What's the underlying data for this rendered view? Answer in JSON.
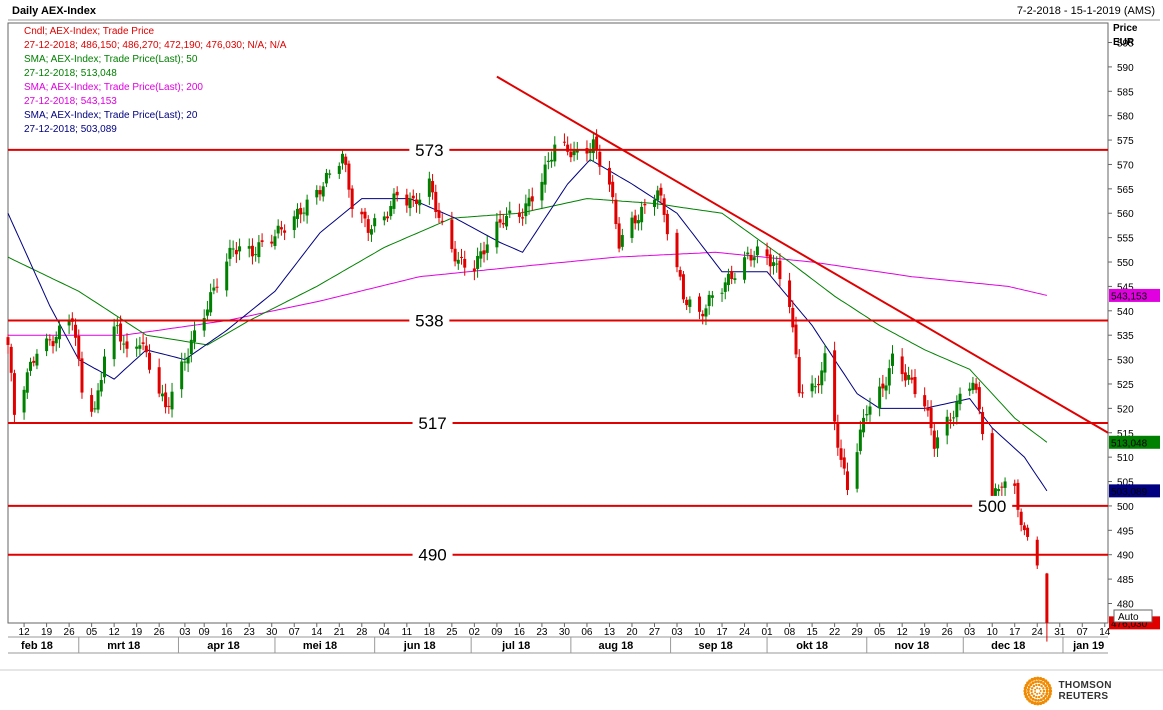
{
  "header": {
    "title": "Daily AEX-Index",
    "date_range": "7-2-2018 - 15-1-2019 (AMS)"
  },
  "legend": [
    {
      "text": "Cndl; AEX-Index; Trade Price",
      "color": "#e00000"
    },
    {
      "text": "27-12-2018; 486,150; 486,270; 472,190; 476,030; N/A; N/A",
      "color": "#e00000"
    },
    {
      "text": "SMA; AEX-Index; Trade Price(Last);  50",
      "color": "#008000"
    },
    {
      "text": "27-12-2018; 513,048",
      "color": "#008000"
    },
    {
      "text": "SMA; AEX-Index; Trade Price(Last);  200",
      "color": "#e000e0"
    },
    {
      "text": "27-12-2018; 543,153",
      "color": "#e000e0"
    },
    {
      "text": "SMA; AEX-Index; Trade Price(Last);  20",
      "color": "#000080"
    },
    {
      "text": "27-12-2018; 503,089",
      "color": "#000080"
    }
  ],
  "price_axis": {
    "title": "Price",
    "unit": "EUR"
  },
  "brand": "THOMSON REUTERS",
  "colors": {
    "up": "#008000",
    "down": "#e00000",
    "sma20": "#000080",
    "sma50": "#008000",
    "sma200": "#e000e0",
    "lines": "#e00000"
  },
  "chart_data": {
    "type": "candlestick",
    "title": "Daily AEX-Index",
    "ylabel": "Price EUR",
    "ylim": [
      476,
      599
    ],
    "yticks": [
      480,
      485,
      490,
      495,
      500,
      505,
      510,
      515,
      520,
      525,
      530,
      535,
      540,
      545,
      550,
      555,
      560,
      565,
      570,
      575,
      580,
      585,
      590,
      595
    ],
    "x_start": "2018-02-07",
    "x_end": "2019-01-15",
    "day_ticks": [
      {
        "date": "2018-02-12",
        "label": "12"
      },
      {
        "date": "2018-02-19",
        "label": "19"
      },
      {
        "date": "2018-02-26",
        "label": "26"
      },
      {
        "date": "2018-03-05",
        "label": "05"
      },
      {
        "date": "2018-03-12",
        "label": "12"
      },
      {
        "date": "2018-03-19",
        "label": "19"
      },
      {
        "date": "2018-03-26",
        "label": "26"
      },
      {
        "date": "2018-04-03",
        "label": "03"
      },
      {
        "date": "2018-04-09",
        "label": "09"
      },
      {
        "date": "2018-04-16",
        "label": "16"
      },
      {
        "date": "2018-04-23",
        "label": "23"
      },
      {
        "date": "2018-04-30",
        "label": "30"
      },
      {
        "date": "2018-05-07",
        "label": "07"
      },
      {
        "date": "2018-05-14",
        "label": "14"
      },
      {
        "date": "2018-05-21",
        "label": "21"
      },
      {
        "date": "2018-05-28",
        "label": "28"
      },
      {
        "date": "2018-06-04",
        "label": "04"
      },
      {
        "date": "2018-06-11",
        "label": "11"
      },
      {
        "date": "2018-06-18",
        "label": "18"
      },
      {
        "date": "2018-06-25",
        "label": "25"
      },
      {
        "date": "2018-07-02",
        "label": "02"
      },
      {
        "date": "2018-07-09",
        "label": "09"
      },
      {
        "date": "2018-07-16",
        "label": "16"
      },
      {
        "date": "2018-07-23",
        "label": "23"
      },
      {
        "date": "2018-07-30",
        "label": "30"
      },
      {
        "date": "2018-08-06",
        "label": "06"
      },
      {
        "date": "2018-08-13",
        "label": "13"
      },
      {
        "date": "2018-08-20",
        "label": "20"
      },
      {
        "date": "2018-08-27",
        "label": "27"
      },
      {
        "date": "2018-09-03",
        "label": "03"
      },
      {
        "date": "2018-09-10",
        "label": "10"
      },
      {
        "date": "2018-09-17",
        "label": "17"
      },
      {
        "date": "2018-09-24",
        "label": "24"
      },
      {
        "date": "2018-10-01",
        "label": "01"
      },
      {
        "date": "2018-10-08",
        "label": "08"
      },
      {
        "date": "2018-10-15",
        "label": "15"
      },
      {
        "date": "2018-10-22",
        "label": "22"
      },
      {
        "date": "2018-10-29",
        "label": "29"
      },
      {
        "date": "2018-11-05",
        "label": "05"
      },
      {
        "date": "2018-11-12",
        "label": "12"
      },
      {
        "date": "2018-11-19",
        "label": "19"
      },
      {
        "date": "2018-11-26",
        "label": "26"
      },
      {
        "date": "2018-12-03",
        "label": "03"
      },
      {
        "date": "2018-12-10",
        "label": "10"
      },
      {
        "date": "2018-12-17",
        "label": "17"
      },
      {
        "date": "2018-12-24",
        "label": "24"
      },
      {
        "date": "2018-12-31",
        "label": "31"
      },
      {
        "date": "2019-01-07",
        "label": "07"
      },
      {
        "date": "2019-01-14",
        "label": "14"
      }
    ],
    "month_labels": [
      {
        "date": "2018-02-16",
        "label": "feb 18"
      },
      {
        "date": "2018-03-15",
        "label": "mrt 18"
      },
      {
        "date": "2018-04-15",
        "label": "apr 18"
      },
      {
        "date": "2018-05-15",
        "label": "mei 18"
      },
      {
        "date": "2018-06-15",
        "label": "jun 18"
      },
      {
        "date": "2018-07-15",
        "label": "jul 18"
      },
      {
        "date": "2018-08-15",
        "label": "aug 18"
      },
      {
        "date": "2018-09-15",
        "label": "sep 18"
      },
      {
        "date": "2018-10-15",
        "label": "okt 18"
      },
      {
        "date": "2018-11-15",
        "label": "nov 18"
      },
      {
        "date": "2018-12-15",
        "label": "dec 18"
      },
      {
        "date": "2019-01-09",
        "label": "jan 19"
      }
    ],
    "month_starts": [
      "2018-03-01",
      "2018-04-01",
      "2018-05-01",
      "2018-06-01",
      "2018-07-01",
      "2018-08-01",
      "2018-09-01",
      "2018-10-01",
      "2018-11-01",
      "2018-12-01",
      "2019-01-01"
    ],
    "candle_anchors": [
      [
        "2018-02-07",
        533
      ],
      [
        "2018-02-09",
        519
      ],
      [
        "2018-02-12",
        525
      ],
      [
        "2018-02-16",
        532
      ],
      [
        "2018-02-21",
        534
      ],
      [
        "2018-02-27",
        539
      ],
      [
        "2018-03-02",
        524
      ],
      [
        "2018-03-06",
        519
      ],
      [
        "2018-03-09",
        531
      ],
      [
        "2018-03-13",
        537
      ],
      [
        "2018-03-16",
        531
      ],
      [
        "2018-03-20",
        534
      ],
      [
        "2018-03-23",
        529
      ],
      [
        "2018-03-28",
        520
      ],
      [
        "2018-04-03",
        530
      ],
      [
        "2018-04-06",
        535
      ],
      [
        "2018-04-10",
        541
      ],
      [
        "2018-04-13",
        546
      ],
      [
        "2018-04-18",
        553
      ],
      [
        "2018-04-24",
        552
      ],
      [
        "2018-04-30",
        555
      ],
      [
        "2018-05-07",
        559
      ],
      [
        "2018-05-14",
        564
      ],
      [
        "2018-05-22",
        572
      ],
      [
        "2018-05-25",
        562
      ],
      [
        "2018-05-30",
        557
      ],
      [
        "2018-06-04",
        559
      ],
      [
        "2018-06-08",
        564
      ],
      [
        "2018-06-13",
        562
      ],
      [
        "2018-06-18",
        566
      ],
      [
        "2018-06-22",
        557
      ],
      [
        "2018-06-27",
        550
      ],
      [
        "2018-07-02",
        549
      ],
      [
        "2018-07-06",
        554
      ],
      [
        "2018-07-11",
        559
      ],
      [
        "2018-07-17",
        560
      ],
      [
        "2018-07-23",
        567
      ],
      [
        "2018-07-27",
        574
      ],
      [
        "2018-07-31",
        573
      ],
      [
        "2018-08-03",
        572
      ],
      [
        "2018-08-08",
        574
      ],
      [
        "2018-08-13",
        566
      ],
      [
        "2018-08-16",
        554
      ],
      [
        "2018-08-20",
        558
      ],
      [
        "2018-08-24",
        561
      ],
      [
        "2018-08-28",
        565
      ],
      [
        "2018-08-31",
        557
      ],
      [
        "2018-09-05",
        543
      ],
      [
        "2018-09-10",
        539
      ],
      [
        "2018-09-14",
        543
      ],
      [
        "2018-09-20",
        547
      ],
      [
        "2018-09-25",
        551
      ],
      [
        "2018-09-28",
        552
      ],
      [
        "2018-10-03",
        550
      ],
      [
        "2018-10-08",
        542
      ],
      [
        "2018-10-11",
        524
      ],
      [
        "2018-10-16",
        524
      ],
      [
        "2018-10-19",
        530
      ],
      [
        "2018-10-24",
        509
      ],
      [
        "2018-10-26",
        504
      ],
      [
        "2018-11-01",
        520
      ],
      [
        "2018-11-06",
        524
      ],
      [
        "2018-11-09",
        530
      ],
      [
        "2018-11-14",
        526
      ],
      [
        "2018-11-19",
        521
      ],
      [
        "2018-11-22",
        513
      ],
      [
        "2018-11-27",
        518
      ],
      [
        "2018-11-30",
        522
      ],
      [
        "2018-12-04",
        526
      ],
      [
        "2018-12-07",
        516
      ],
      [
        "2018-12-10",
        501
      ],
      [
        "2018-12-13",
        505
      ],
      [
        "2018-12-17",
        503
      ],
      [
        "2018-12-20",
        494
      ],
      [
        "2018-12-21",
        493
      ],
      [
        "2018-12-24",
        489
      ],
      [
        "2018-12-27",
        476
      ]
    ],
    "last_candle": {
      "date": "2018-12-27",
      "open": 486.15,
      "high": 486.27,
      "low": 472.19,
      "close": 476.03
    },
    "sma20_anchors": [
      [
        "2018-02-07",
        560
      ],
      [
        "2018-02-20",
        541
      ],
      [
        "2018-03-01",
        530
      ],
      [
        "2018-03-12",
        526
      ],
      [
        "2018-03-22",
        532
      ],
      [
        "2018-04-03",
        530
      ],
      [
        "2018-04-16",
        536
      ],
      [
        "2018-05-01",
        544
      ],
      [
        "2018-05-15",
        556
      ],
      [
        "2018-05-28",
        563
      ],
      [
        "2018-06-12",
        563
      ],
      [
        "2018-06-26",
        559
      ],
      [
        "2018-07-10",
        554
      ],
      [
        "2018-07-17",
        552
      ],
      [
        "2018-07-31",
        566
      ],
      [
        "2018-08-07",
        571
      ],
      [
        "2018-08-20",
        566
      ],
      [
        "2018-09-03",
        560
      ],
      [
        "2018-09-17",
        548
      ],
      [
        "2018-10-01",
        548
      ],
      [
        "2018-10-15",
        537
      ],
      [
        "2018-10-29",
        523
      ],
      [
        "2018-11-05",
        520
      ],
      [
        "2018-11-19",
        520
      ],
      [
        "2018-12-03",
        522
      ],
      [
        "2018-12-10",
        516
      ],
      [
        "2018-12-20",
        510
      ],
      [
        "2018-12-27",
        503.089
      ]
    ],
    "sma50_anchors": [
      [
        "2018-02-07",
        551
      ],
      [
        "2018-03-01",
        544
      ],
      [
        "2018-03-22",
        535
      ],
      [
        "2018-04-10",
        533
      ],
      [
        "2018-04-23",
        538
      ],
      [
        "2018-05-14",
        545
      ],
      [
        "2018-06-04",
        553
      ],
      [
        "2018-06-25",
        559
      ],
      [
        "2018-07-16",
        560
      ],
      [
        "2018-08-06",
        563
      ],
      [
        "2018-08-27",
        562
      ],
      [
        "2018-09-17",
        560
      ],
      [
        "2018-10-08",
        550
      ],
      [
        "2018-10-22",
        543
      ],
      [
        "2018-11-05",
        537
      ],
      [
        "2018-11-19",
        532
      ],
      [
        "2018-12-03",
        528
      ],
      [
        "2018-12-17",
        518
      ],
      [
        "2018-12-27",
        513.048
      ]
    ],
    "sma200_anchors": [
      [
        "2018-02-07",
        535
      ],
      [
        "2018-03-15",
        535
      ],
      [
        "2018-04-16",
        538
      ],
      [
        "2018-05-15",
        542
      ],
      [
        "2018-06-15",
        547
      ],
      [
        "2018-07-15",
        549
      ],
      [
        "2018-08-15",
        551
      ],
      [
        "2018-09-15",
        552
      ],
      [
        "2018-10-15",
        550
      ],
      [
        "2018-11-15",
        547
      ],
      [
        "2018-12-15",
        545
      ],
      [
        "2018-12-27",
        543.153
      ]
    ],
    "horizontal_lines": [
      {
        "value": 573,
        "label": "573",
        "label_date": "2018-06-18"
      },
      {
        "value": 538,
        "label": "538",
        "label_date": "2018-06-18"
      },
      {
        "value": 517,
        "label": "517",
        "label_date": "2018-06-19"
      },
      {
        "value": 500,
        "label": "500",
        "label_date": "2018-12-10",
        "start_date": "2018-02-07"
      },
      {
        "value": 490,
        "label": "490",
        "label_date": "2018-06-19"
      }
    ],
    "trendline": {
      "from": [
        "2018-07-09",
        588
      ],
      "to": [
        "2019-01-15",
        515
      ]
    },
    "price_tags": [
      {
        "value": 543.153,
        "label": "543,153",
        "color": "#e000e0"
      },
      {
        "value": 513.048,
        "label": "513,048",
        "color": "#008000"
      },
      {
        "value": 503.089,
        "label": "503,089",
        "color": "#000080"
      },
      {
        "value": 476.03,
        "label": "476,030",
        "color": "#e00000"
      }
    ],
    "auto_label": "Auto"
  }
}
